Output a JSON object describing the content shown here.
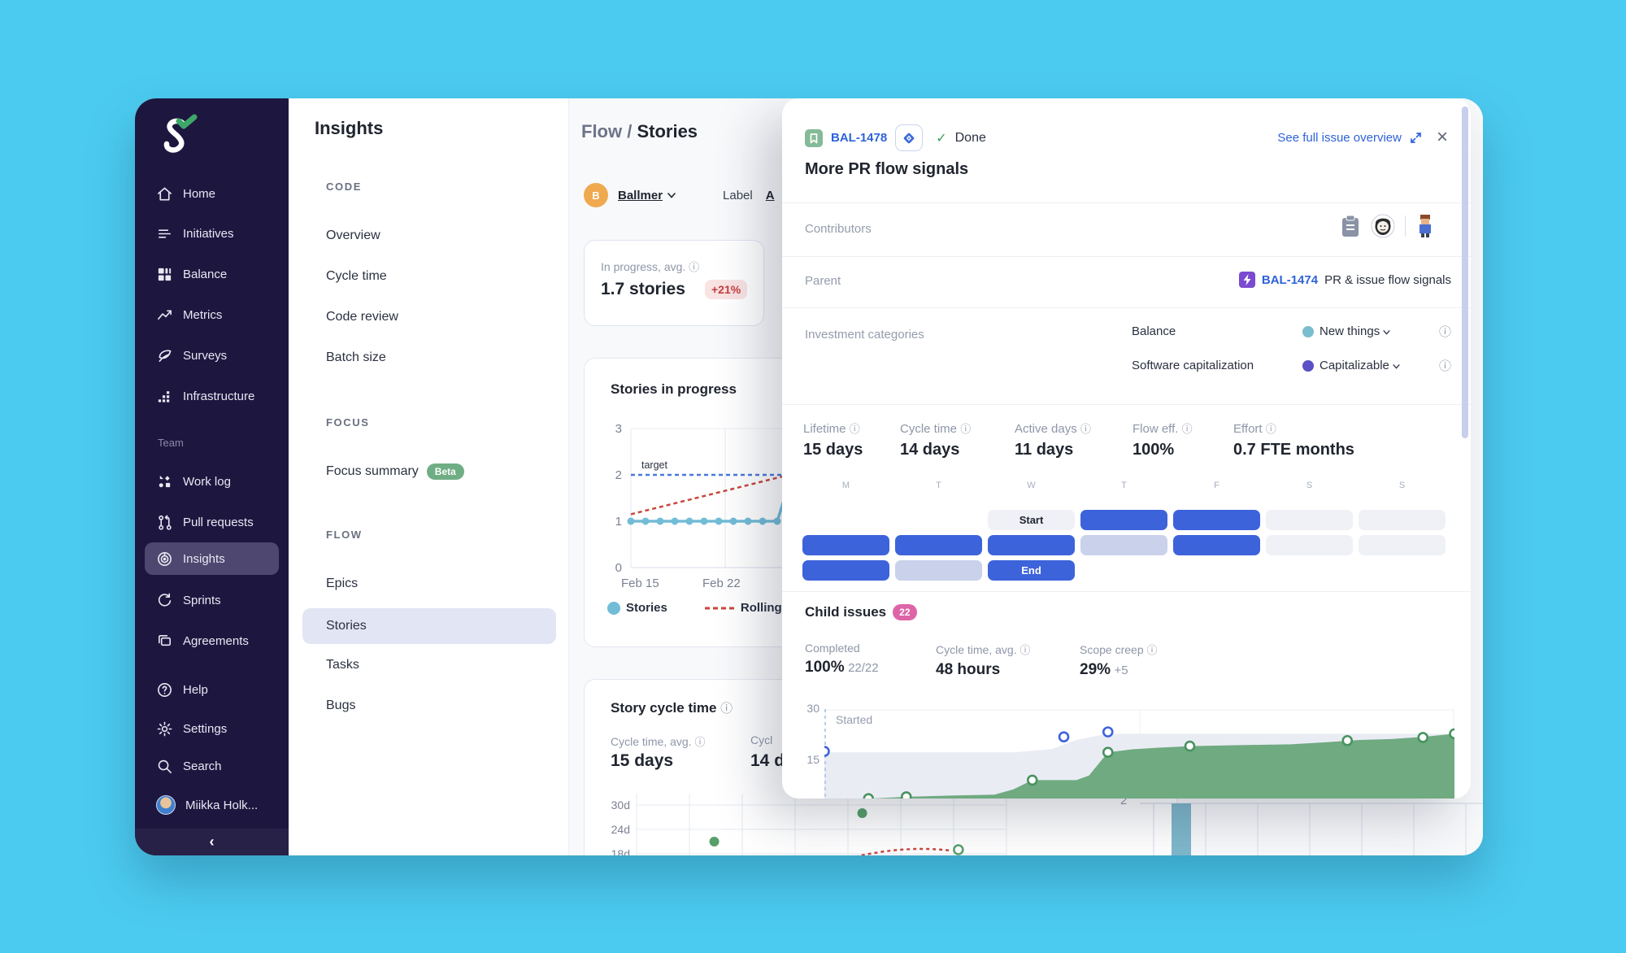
{
  "sidebar": {
    "items": [
      {
        "label": "Home",
        "icon": "home"
      },
      {
        "label": "Initiatives",
        "icon": "initiatives"
      },
      {
        "label": "Balance",
        "icon": "balance"
      },
      {
        "label": "Metrics",
        "icon": "metrics"
      },
      {
        "label": "Surveys",
        "icon": "surveys"
      },
      {
        "label": "Infrastructure",
        "icon": "infrastructure"
      }
    ],
    "team_label": "Team",
    "team_items": [
      {
        "label": "Work log",
        "icon": "worklog"
      },
      {
        "label": "Pull requests",
        "icon": "pullrequest"
      },
      {
        "label": "Insights",
        "icon": "insights",
        "active": true
      },
      {
        "label": "Sprints",
        "icon": "sprints"
      },
      {
        "label": "Agreements",
        "icon": "agreements"
      }
    ],
    "footer_items": [
      {
        "label": "Help",
        "icon": "help"
      },
      {
        "label": "Settings",
        "icon": "settings"
      },
      {
        "label": "Search",
        "icon": "search"
      }
    ],
    "user": {
      "name": "Miikka Holk..."
    },
    "collapse": "‹"
  },
  "nav_panel": {
    "title": "Insights",
    "sections": [
      {
        "label": "CODE",
        "items": [
          {
            "label": "Overview"
          },
          {
            "label": "Cycle time"
          },
          {
            "label": "Code review"
          },
          {
            "label": "Batch size"
          }
        ]
      },
      {
        "label": "FOCUS",
        "items": [
          {
            "label": "Focus summary",
            "badge": "Beta"
          }
        ]
      },
      {
        "label": "FLOW",
        "items": [
          {
            "label": "Epics"
          },
          {
            "label": "Stories",
            "selected": true
          },
          {
            "label": "Tasks"
          },
          {
            "label": "Bugs"
          }
        ]
      }
    ]
  },
  "main": {
    "breadcrumb": {
      "section": "Flow /",
      "page": "Stories"
    },
    "filters": {
      "team_initial": "B",
      "team": "Ballmer",
      "label": "Label",
      "label_value_fragment": "A"
    },
    "stat_card": {
      "label": "In progress, avg.",
      "info": "ⓘ",
      "value": "1.7 stories",
      "delta": "+21%"
    },
    "stories_card": {
      "title": "Stories in progress"
    },
    "cycle_card": {
      "title": "Story cycle time",
      "info": "ⓘ",
      "stat1_label": "Cycle time, avg.",
      "stat1_value": "15 days",
      "stat2_label": "Cycl",
      "stat2_value": "14 d"
    },
    "bg_fragment_axis_label": "2"
  },
  "modal": {
    "issue_key": "BAL-1478",
    "status_check": "✓",
    "status": "Done",
    "overview_link": "See full issue overview",
    "close": "×",
    "title": "More PR flow signals",
    "contributors_label": "Contributors",
    "parent_label": "Parent",
    "parent_key": "BAL-1474",
    "parent_title": "PR & issue flow signals",
    "invest_label": "Investment categories",
    "categories": [
      {
        "name": "Balance",
        "value": "New things",
        "dot_color": "#79BECE"
      },
      {
        "name": "Software capitalization",
        "value": "Capitalizable",
        "dot_color": "#5B50C5"
      }
    ],
    "metrics": [
      {
        "label": "Lifetime",
        "value": "15 days"
      },
      {
        "label": "Cycle time",
        "value": "14 days"
      },
      {
        "label": "Active days",
        "value": "11 days"
      },
      {
        "label": "Flow eff.",
        "value": "100%"
      },
      {
        "label": "Effort",
        "value": "0.7 FTE months"
      }
    ],
    "week": {
      "days": [
        "M",
        "T",
        "W",
        "T",
        "F",
        "S",
        "S"
      ],
      "start_label": "Start",
      "end_label": "End",
      "rows": [
        [
          "none",
          "none",
          "start",
          "blue",
          "blue",
          "pale",
          "pale"
        ],
        [
          "blue",
          "blue",
          "blue",
          "lav",
          "blue",
          "pale",
          "pale"
        ],
        [
          "blue",
          "lav",
          "end",
          "none",
          "none",
          "none",
          "none"
        ]
      ]
    },
    "child": {
      "title": "Child issues",
      "count": "22",
      "stats": [
        {
          "label": "Completed",
          "value": "100%",
          "suffix": "22/22"
        },
        {
          "label": "Cycle time, avg.",
          "info": "ⓘ",
          "value": "48 hours",
          "suffix": ""
        },
        {
          "label": "Scope creep",
          "info": "ⓘ",
          "value": "29%",
          "suffix": "+5"
        }
      ],
      "annotation": "Started"
    }
  },
  "chart_data": [
    {
      "id": "stories_in_progress",
      "type": "line",
      "title": "Stories in progress",
      "x_ticks": [
        "Feb 15",
        "Feb 22"
      ],
      "ylim": [
        0,
        3
      ],
      "y_ticks": [
        3,
        2,
        1,
        0
      ],
      "target": {
        "label": "target",
        "value": 2,
        "color": "#4A77E0"
      },
      "series": [
        {
          "name": "Stories",
          "style": "solid_dots",
          "color": "#73BCD7",
          "values": [
            1,
            1,
            1,
            1,
            1,
            1,
            1,
            1,
            1,
            1,
            1,
            2,
            2
          ]
        },
        {
          "name": "Rolling a",
          "style": "dashed",
          "color": "#C8473C",
          "values": [
            1.15,
            1.85
          ]
        }
      ],
      "legend": [
        "Stories",
        "Rolling a"
      ]
    },
    {
      "id": "story_cycle_time",
      "type": "scatter",
      "title": "Story cycle time",
      "y_ticks": [
        "30d",
        "24d",
        "18d"
      ],
      "points": [
        {
          "xf": 0.21,
          "value_days": 21
        },
        {
          "xf": 0.61,
          "value_days": 28
        },
        {
          "xf": 0.87,
          "value_days": 19,
          "open": true
        }
      ],
      "rolling_color": "#C8473C",
      "point_color": "#57A06B",
      "note": "partially hidden behind issue dialog"
    },
    {
      "id": "child_issues_burnup",
      "type": "area",
      "ylim": [
        0,
        30
      ],
      "y_ticks": [
        30,
        15
      ],
      "annotation": "Started",
      "series": [
        {
          "name": "Total scope",
          "color": "#EAECF4",
          "points": [
            [
              0,
              16
            ],
            [
              30,
              16
            ],
            [
              36,
              17
            ],
            [
              40,
              20
            ],
            [
              45,
              22
            ],
            [
              100,
              22
            ]
          ]
        },
        {
          "name": "Completed",
          "color": "#6FAA80",
          "points": [
            [
              0,
              0
            ],
            [
              4,
              0.4
            ],
            [
              7,
              1
            ],
            [
              13,
              1.6
            ],
            [
              20,
              2
            ],
            [
              27,
              2.3
            ],
            [
              30,
              4
            ],
            [
              33,
              7
            ],
            [
              40,
              7
            ],
            [
              42,
              8.5
            ],
            [
              45,
              16
            ],
            [
              49,
              17
            ],
            [
              53,
              17.5
            ],
            [
              58,
              18
            ],
            [
              65,
              18.3
            ],
            [
              74,
              18.6
            ],
            [
              80,
              19.3
            ],
            [
              85,
              20
            ],
            [
              90,
              20.3
            ],
            [
              95,
              21
            ],
            [
              100,
              22
            ]
          ]
        }
      ],
      "markers": {
        "completed_color": "#48925F",
        "completed": [
          [
            7,
            1
          ],
          [
            13,
            1.6
          ],
          [
            33,
            7
          ],
          [
            45,
            16
          ],
          [
            58,
            18
          ],
          [
            83,
            19.8
          ],
          [
            95,
            20.8
          ],
          [
            100,
            22
          ]
        ],
        "started_color": "#3D63DB",
        "started": [
          [
            0,
            16.3
          ],
          [
            38,
            21
          ],
          [
            45,
            22.6
          ]
        ]
      }
    }
  ]
}
